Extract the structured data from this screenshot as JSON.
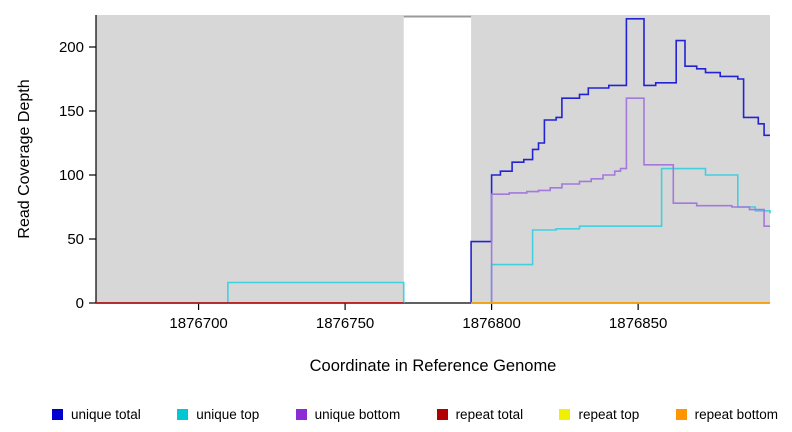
{
  "chart_data": {
    "type": "line",
    "title": "",
    "xlabel": "Coordinate in Reference Genome",
    "ylabel": "Read Coverage Depth",
    "xlim": [
      1876665,
      1876895
    ],
    "ylim": [
      0,
      225
    ],
    "xticks": [
      1876700,
      1876750,
      1876800,
      1876850
    ],
    "yticks": [
      0,
      50,
      100,
      150,
      200
    ],
    "grid": false,
    "legend_position": "bottom",
    "plot_background": "#ffffff",
    "covered_region_color": "#d7d7d7",
    "background_regions": [
      {
        "x0": 1876665,
        "x1": 1876770
      },
      {
        "x0": 1876793,
        "x1": 1876895
      }
    ],
    "gap_region": {
      "x0": 1876770,
      "x1": 1876793,
      "top_line_color": "#999999"
    },
    "series": [
      {
        "name": "unique total",
        "color": "#2323d4",
        "segments": [
          [
            [
              1876793,
              0
            ],
            [
              1876793,
              48
            ],
            [
              1876799,
              48
            ],
            [
              1876800,
              100
            ],
            [
              1876803,
              103
            ],
            [
              1876806,
              103
            ],
            [
              1876807,
              110
            ],
            [
              1876811,
              112
            ],
            [
              1876814,
              120
            ],
            [
              1876816,
              125
            ],
            [
              1876818,
              143
            ],
            [
              1876822,
              145
            ],
            [
              1876824,
              160
            ],
            [
              1876830,
              163
            ],
            [
              1876833,
              168
            ],
            [
              1876840,
              170
            ],
            [
              1876846,
              222
            ],
            [
              1876851,
              222
            ],
            [
              1876852,
              170
            ],
            [
              1876856,
              172
            ],
            [
              1876862,
              172
            ],
            [
              1876863,
              205
            ],
            [
              1876865,
              205
            ],
            [
              1876866,
              185
            ],
            [
              1876870,
              183
            ],
            [
              1876873,
              180
            ],
            [
              1876878,
              177
            ],
            [
              1876884,
              175
            ],
            [
              1876886,
              145
            ],
            [
              1876891,
              140
            ],
            [
              1876893,
              131
            ],
            [
              1876895,
              131
            ]
          ]
        ]
      },
      {
        "name": "unique top",
        "color": "#44cfe0",
        "segments": [
          [
            [
              1876665,
              0
            ],
            [
              1876710,
              0
            ],
            [
              1876710,
              16
            ],
            [
              1876770,
              16
            ],
            [
              1876770,
              0
            ]
          ],
          [
            [
              1876793,
              0
            ],
            [
              1876800,
              0
            ],
            [
              1876800,
              30
            ],
            [
              1876814,
              30
            ],
            [
              1876814,
              57
            ],
            [
              1876822,
              58
            ],
            [
              1876830,
              60
            ],
            [
              1876858,
              60
            ],
            [
              1876858,
              105
            ],
            [
              1876873,
              105
            ],
            [
              1876873,
              100
            ],
            [
              1876884,
              100
            ],
            [
              1876884,
              75
            ],
            [
              1876890,
              72
            ],
            [
              1876895,
              70
            ]
          ]
        ]
      },
      {
        "name": "unique bottom",
        "color": "#a379dc",
        "segments": [
          [
            [
              1876800,
              0
            ],
            [
              1876800,
              85
            ],
            [
              1876806,
              86
            ],
            [
              1876812,
              87
            ],
            [
              1876816,
              88
            ],
            [
              1876820,
              90
            ],
            [
              1876824,
              93
            ],
            [
              1876830,
              95
            ],
            [
              1876834,
              97
            ],
            [
              1876838,
              100
            ],
            [
              1876842,
              103
            ],
            [
              1876844,
              105
            ],
            [
              1876846,
              160
            ],
            [
              1876851,
              160
            ],
            [
              1876852,
              108
            ],
            [
              1876861,
              108
            ],
            [
              1876862,
              78
            ],
            [
              1876870,
              76
            ],
            [
              1876882,
              75
            ],
            [
              1876888,
              73
            ],
            [
              1876893,
              60
            ],
            [
              1876895,
              60
            ]
          ]
        ]
      },
      {
        "name": "repeat total",
        "color": "#c00000",
        "segments": [
          [
            [
              1876665,
              0
            ],
            [
              1876770,
              0
            ]
          ]
        ]
      },
      {
        "name": "repeat top",
        "color": "#f2f200",
        "segments": [
          [
            [
              1876793,
              0
            ],
            [
              1876895,
              0
            ]
          ]
        ]
      },
      {
        "name": "repeat bottom",
        "color": "#ff9500",
        "segments": [
          [
            [
              1876793,
              0
            ],
            [
              1876895,
              0
            ]
          ]
        ]
      }
    ],
    "legend": [
      {
        "label": "unique total",
        "color": "#0000cc"
      },
      {
        "label": "unique top",
        "color": "#00c8d2"
      },
      {
        "label": "unique bottom",
        "color": "#8a2bd6"
      },
      {
        "label": "repeat total",
        "color": "#b00000"
      },
      {
        "label": "repeat top",
        "color": "#f0f000"
      },
      {
        "label": "repeat bottom",
        "color": "#ff9500"
      }
    ]
  }
}
